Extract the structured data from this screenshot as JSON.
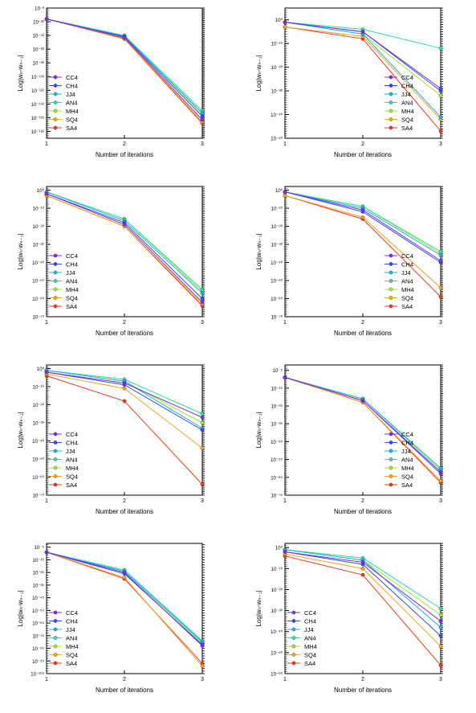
{
  "legend_order": [
    "CC4",
    "CH4",
    "JJ4",
    "AN4",
    "MH4",
    "SQ4",
    "SA4"
  ],
  "series_colors": {
    "CC4": "#7b2fe3",
    "CH4": "#2f4fe3",
    "JJ4": "#1fb0ea",
    "AN4": "#26e0a0",
    "MH4": "#9be82a",
    "SQ4": "#f5a11c",
    "SA4": "#ea3a1c"
  },
  "chart_data": [
    {
      "type": "line",
      "xlabel": "Number of iterations",
      "ylabel": "Log|wₙ-wₙ₋₁|",
      "x": [
        1,
        2,
        3
      ],
      "xticks": [
        "1",
        "2",
        "3"
      ],
      "yscale": "log",
      "ylim_exp": [
        -192,
        -2
      ],
      "yticks": [
        "10⁻²",
        "10⁻²²",
        "10⁻⁴²",
        "10⁻⁶²",
        "10⁻⁸²",
        "10⁻¹⁰²",
        "10⁻¹²²",
        "10⁻¹⁴²",
        "10⁻¹⁶²",
        "10⁻¹⁸²"
      ],
      "ytick_exp": [
        -2,
        -22,
        -42,
        -62,
        -82,
        -102,
        -122,
        -142,
        -162,
        -182
      ],
      "legend": "lower-left",
      "series": [
        {
          "name": "CC4",
          "log10": [
            -18,
            -45,
            -165
          ]
        },
        {
          "name": "CH4",
          "log10": [
            -18,
            -44,
            -160
          ]
        },
        {
          "name": "JJ4",
          "log10": [
            -18,
            -43,
            -155
          ]
        },
        {
          "name": "AN4",
          "log10": [
            -18,
            -42,
            -152
          ]
        },
        {
          "name": "MH4",
          "log10": [
            -18,
            -43,
            -157
          ]
        },
        {
          "name": "SQ4",
          "log10": [
            -18,
            -46,
            -168
          ]
        },
        {
          "name": "SA4",
          "log10": [
            -18,
            -47,
            -170
          ]
        }
      ]
    },
    {
      "type": "line",
      "xlabel": "Number of iterations",
      "ylabel": "Log|wₙ-wₙ₋₁|",
      "x": [
        1,
        2,
        3
      ],
      "xticks": [
        "1",
        "2",
        "3"
      ],
      "yscale": "log",
      "ylim_exp": [
        -50,
        5
      ],
      "yticks": [
        "10⁰",
        "10⁻¹⁰",
        "10⁻²⁰",
        "10⁻³⁰",
        "10⁻⁴⁰",
        "10⁻⁵⁰"
      ],
      "ytick_exp": [
        0,
        -10,
        -20,
        -30,
        -40,
        -50
      ],
      "legend": "lower-right",
      "series": [
        {
          "name": "CC4",
          "log10": [
            -1,
            -5,
            -29
          ]
        },
        {
          "name": "CH4",
          "log10": [
            -1,
            -5,
            -30
          ]
        },
        {
          "name": "JJ4",
          "log10": [
            -1,
            -6,
            -41
          ]
        },
        {
          "name": "AN4",
          "log10": [
            -1,
            -4,
            -12
          ]
        },
        {
          "name": "MH4",
          "log10": [
            -1,
            -6,
            -32
          ]
        },
        {
          "name": "SQ4",
          "log10": [
            -3,
            -7,
            -42
          ]
        },
        {
          "name": "SA4",
          "log10": [
            -3,
            -8,
            -47
          ]
        }
      ]
    },
    {
      "type": "line",
      "xlabel": "Number of iterations",
      "ylabel": "Log|wₙ-wₙ₋₁|",
      "x": [
        1,
        2,
        3
      ],
      "xticks": [
        "1",
        "2",
        "3"
      ],
      "yscale": "log",
      "ylim_exp": [
        -70,
        2
      ],
      "yticks": [
        "10⁰",
        "10⁻¹⁰",
        "10⁻²⁰",
        "10⁻³⁰",
        "10⁻⁴⁰",
        "10⁻⁵⁰",
        "10⁻⁶⁰",
        "10⁻⁷⁰"
      ],
      "ytick_exp": [
        0,
        -10,
        -20,
        -30,
        -40,
        -50,
        -60,
        -70
      ],
      "legend": "lower-left",
      "series": [
        {
          "name": "CC4",
          "log10": [
            -2,
            -19,
            -62
          ]
        },
        {
          "name": "CH4",
          "log10": [
            -2,
            -18,
            -60
          ]
        },
        {
          "name": "JJ4",
          "log10": [
            -1,
            -17,
            -57
          ]
        },
        {
          "name": "AN4",
          "log10": [
            -1,
            -16,
            -55
          ]
        },
        {
          "name": "MH4",
          "log10": [
            -1,
            -16,
            -56
          ]
        },
        {
          "name": "SQ4",
          "log10": [
            -3,
            -20,
            -63
          ]
        },
        {
          "name": "SA4",
          "log10": [
            -3,
            -20,
            -64
          ]
        }
      ]
    },
    {
      "type": "line",
      "xlabel": "Number of iterations",
      "ylabel": "Log|wₙ-wₙ₋₁|",
      "x": [
        1,
        2,
        3
      ],
      "xticks": [
        "1",
        "2",
        "3"
      ],
      "yscale": "log",
      "ylim_exp": [
        -70,
        2
      ],
      "yticks": [
        "10⁰",
        "10⁻¹⁰",
        "10⁻²⁰",
        "10⁻³⁰",
        "10⁻⁴⁰",
        "10⁻⁵⁰",
        "10⁻⁶⁰",
        "10⁻⁷⁰"
      ],
      "ytick_exp": [
        0,
        -10,
        -20,
        -30,
        -40,
        -50,
        -60,
        -70
      ],
      "legend": "lower-right",
      "series": [
        {
          "name": "CC4",
          "log10": [
            -1,
            -11,
            -39
          ]
        },
        {
          "name": "CH4",
          "log10": [
            -1,
            -12,
            -40
          ]
        },
        {
          "name": "JJ4",
          "log10": [
            -1,
            -10,
            -36
          ]
        },
        {
          "name": "AN4",
          "log10": [
            -1,
            -9,
            -34
          ]
        },
        {
          "name": "MH4",
          "log10": [
            -1,
            -9,
            -35
          ]
        },
        {
          "name": "SQ4",
          "log10": [
            -3,
            -15,
            -54
          ]
        },
        {
          "name": "SA4",
          "log10": [
            -3,
            -16,
            -59
          ]
        }
      ]
    },
    {
      "type": "line",
      "xlabel": "Number of iterations",
      "ylabel": "Log|wₙ-wₙ₋₁|",
      "x": [
        1,
        2,
        3
      ],
      "xticks": [
        "1",
        "2",
        "3"
      ],
      "yscale": "log",
      "ylim_exp": [
        -70,
        2
      ],
      "yticks": [
        "10⁰",
        "10⁻¹⁰",
        "10⁻²⁰",
        "10⁻³⁰",
        "10⁻⁴⁰",
        "10⁻⁵⁰",
        "10⁻⁶⁰",
        "10⁻⁷⁰"
      ],
      "ytick_exp": [
        0,
        -10,
        -20,
        -30,
        -40,
        -50,
        -60,
        -70
      ],
      "legend": "lower-left",
      "series": [
        {
          "name": "CC4",
          "log10": [
            -2,
            -8,
            -27
          ]
        },
        {
          "name": "CH4",
          "log10": [
            -2,
            -9,
            -34
          ]
        },
        {
          "name": "JJ4",
          "log10": [
            -1,
            -7,
            -33
          ]
        },
        {
          "name": "AN4",
          "log10": [
            -1,
            -6,
            -25
          ]
        },
        {
          "name": "MH4",
          "log10": [
            -1,
            -7,
            -30
          ]
        },
        {
          "name": "SQ4",
          "log10": [
            -3,
            -11,
            -44
          ]
        },
        {
          "name": "SA4",
          "log10": [
            -4,
            -18,
            -64
          ]
        }
      ]
    },
    {
      "type": "line",
      "xlabel": "Number of iterations",
      "ylabel": "Log|wₙ-wₙ₋₁|",
      "x": [
        1,
        2,
        3
      ],
      "xticks": [
        "1",
        "2",
        "3"
      ],
      "yscale": "log",
      "ylim_exp": [
        -75,
        -2
      ],
      "yticks": [
        "10⁻⁵",
        "10⁻¹⁵",
        "10⁻²⁵",
        "10⁻³⁵",
        "10⁻⁴⁵",
        "10⁻⁵⁵",
        "10⁻⁶⁵",
        "10⁻⁷⁵"
      ],
      "ytick_exp": [
        -5,
        -15,
        -25,
        -35,
        -45,
        -55,
        -65,
        -75
      ],
      "legend": "lower-right",
      "series": [
        {
          "name": "CC4",
          "log10": [
            -9,
            -22,
            -63
          ]
        },
        {
          "name": "CH4",
          "log10": [
            -9,
            -22,
            -62
          ]
        },
        {
          "name": "JJ4",
          "log10": [
            -9,
            -21,
            -60
          ]
        },
        {
          "name": "AN4",
          "log10": [
            -9,
            -21,
            -60
          ]
        },
        {
          "name": "MH4",
          "log10": [
            -9,
            -21,
            -61
          ]
        },
        {
          "name": "SQ4",
          "log10": [
            -9,
            -23,
            -67
          ]
        },
        {
          "name": "SA4",
          "log10": [
            -9,
            -23,
            -68
          ]
        }
      ]
    },
    {
      "type": "line",
      "xlabel": "Number of iterations",
      "ylabel": "Log|wₙ-wₙ₋₁|",
      "x": [
        1,
        2,
        3
      ],
      "xticks": [
        "1",
        "2",
        "3"
      ],
      "yscale": "log",
      "ylim_exp": [
        -105,
        -2
      ],
      "yticks": [
        "10⁻⁵",
        "10⁻¹⁵",
        "10⁻²⁵",
        "10⁻³⁵",
        "10⁻⁴⁵",
        "10⁻⁵⁵",
        "10⁻⁶⁵",
        "10⁻⁷⁵",
        "10⁻⁸⁵",
        "10⁻⁹⁵",
        "10⁻¹⁰⁵"
      ],
      "ytick_exp": [
        -5,
        -15,
        -25,
        -35,
        -45,
        -55,
        -65,
        -75,
        -85,
        -95,
        -105
      ],
      "legend": "lower-left",
      "series": [
        {
          "name": "CC4",
          "log10": [
            -9,
            -25,
            -83
          ]
        },
        {
          "name": "CH4",
          "log10": [
            -9,
            -26,
            -82
          ]
        },
        {
          "name": "JJ4",
          "log10": [
            -9,
            -24,
            -80
          ]
        },
        {
          "name": "AN4",
          "log10": [
            -9,
            -23,
            -79
          ]
        },
        {
          "name": "MH4",
          "log10": [
            -9,
            -24,
            -81
          ]
        },
        {
          "name": "SQ4",
          "log10": [
            -9,
            -29,
            -99
          ]
        },
        {
          "name": "SA4",
          "log10": [
            -9,
            -30,
            -97
          ]
        }
      ]
    },
    {
      "type": "line",
      "xlabel": "Number of iterations",
      "ylabel": "Log|wₙ-wₙ₋₁|",
      "x": [
        1,
        2,
        3
      ],
      "xticks": [
        "1",
        "2",
        "3"
      ],
      "yscale": "log",
      "ylim_exp": [
        -60,
        2
      ],
      "yticks": [
        "10⁰",
        "10⁻¹⁰",
        "10⁻²⁰",
        "10⁻³⁰",
        "10⁻⁴⁰",
        "10⁻⁵⁰",
        "10⁻⁶⁰"
      ],
      "ytick_exp": [
        0,
        -10,
        -20,
        -30,
        -40,
        -50,
        -60
      ],
      "legend": "lower-left",
      "series": [
        {
          "name": "CC4",
          "log10": [
            -2,
            -7,
            -35
          ]
        },
        {
          "name": "CH4",
          "log10": [
            -2,
            -8,
            -42
          ]
        },
        {
          "name": "JJ4",
          "log10": [
            -1,
            -6,
            -38
          ]
        },
        {
          "name": "AN4",
          "log10": [
            -1,
            -5,
            -29
          ]
        },
        {
          "name": "MH4",
          "log10": [
            -1,
            -6,
            -32
          ]
        },
        {
          "name": "SQ4",
          "log10": [
            -3,
            -10,
            -47
          ]
        },
        {
          "name": "SA4",
          "log10": [
            -4,
            -13,
            -56
          ]
        }
      ]
    }
  ]
}
